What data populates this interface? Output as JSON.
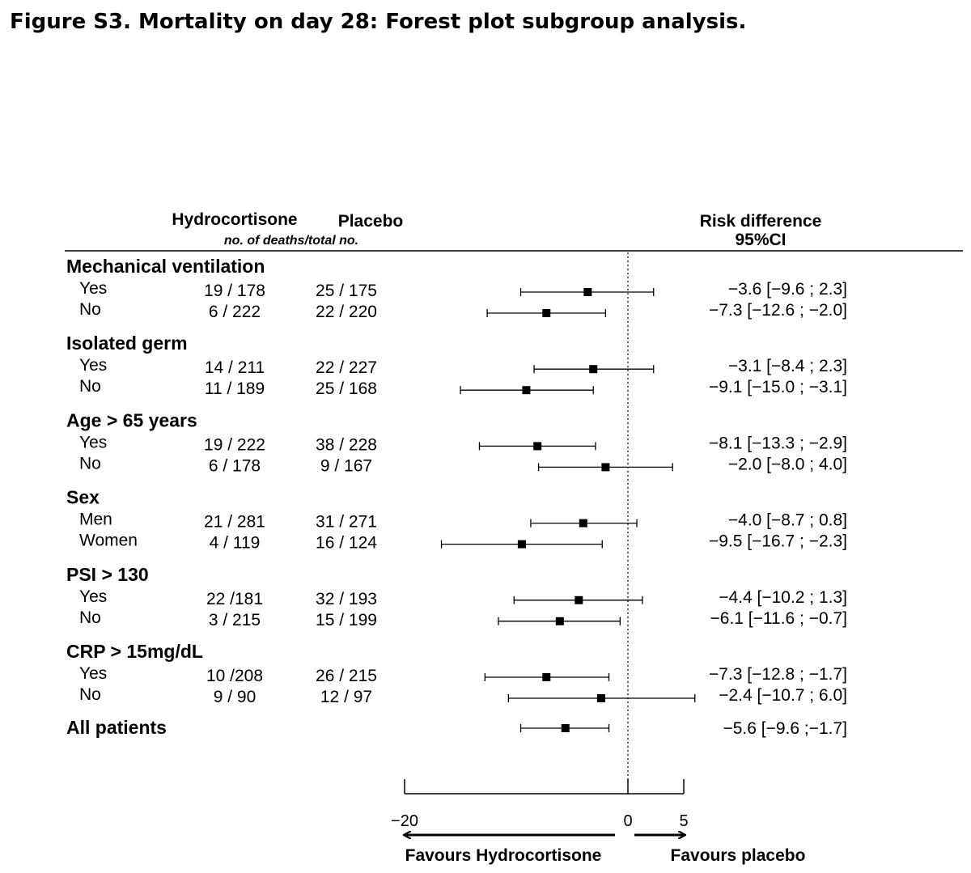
{
  "figure_title": "Figure S3. Mortality on day 28: Forest plot subgroup analysis.",
  "chart_data": {
    "type": "forest",
    "columns": {
      "hydrocortisone": "Hydrocortisone",
      "placebo": "Placebo",
      "subheader": "no. of deaths/total no.",
      "risk_difference": "Risk difference",
      "ci": "95%CI"
    },
    "groups": [
      {
        "name": "Mechanical ventilation",
        "rows": [
          {
            "label": "Yes",
            "hydrocortisone": "19 / 178",
            "placebo": "25 / 175",
            "estimate": -3.6,
            "lower": -9.6,
            "upper": 2.3,
            "text": "−3.6 [−9.6 ; 2.3]"
          },
          {
            "label": "No",
            "hydrocortisone": "6 / 222",
            "placebo": "22 / 220",
            "estimate": -7.3,
            "lower": -12.6,
            "upper": -2.0,
            "text": "−7.3 [−12.6 ; −2.0]"
          }
        ]
      },
      {
        "name": "Isolated germ",
        "rows": [
          {
            "label": "Yes",
            "hydrocortisone": "14 / 211",
            "placebo": "22 / 227",
            "estimate": -3.1,
            "lower": -8.4,
            "upper": 2.3,
            "text": "−3.1 [−8.4 ; 2.3]"
          },
          {
            "label": "No",
            "hydrocortisone": "11 / 189",
            "placebo": "25 / 168",
            "estimate": -9.1,
            "lower": -15.0,
            "upper": -3.1,
            "text": "−9.1 [−15.0 ; −3.1]"
          }
        ]
      },
      {
        "name": "Age > 65 years",
        "rows": [
          {
            "label": "Yes",
            "hydrocortisone": "19 / 222",
            "placebo": "38 / 228",
            "estimate": -8.1,
            "lower": -13.3,
            "upper": -2.9,
            "text": "−8.1 [−13.3 ; −2.9]"
          },
          {
            "label": "No",
            "hydrocortisone": "6 / 178",
            "placebo": "9 / 167",
            "estimate": -2.0,
            "lower": -8.0,
            "upper": 4.0,
            "text": "−2.0 [−8.0 ; 4.0]"
          }
        ]
      },
      {
        "name": "Sex",
        "rows": [
          {
            "label": "Men",
            "hydrocortisone": "21 / 281",
            "placebo": "31 / 271",
            "estimate": -4.0,
            "lower": -8.7,
            "upper": 0.8,
            "text": "−4.0 [−8.7 ; 0.8]"
          },
          {
            "label": "Women",
            "hydrocortisone": "4 / 119",
            "placebo": "16 / 124",
            "estimate": -9.5,
            "lower": -16.7,
            "upper": -2.3,
            "text": "−9.5 [−16.7 ; −2.3]"
          }
        ]
      },
      {
        "name": "PSI > 130",
        "rows": [
          {
            "label": "Yes",
            "hydrocortisone": "22 /181",
            "placebo": "32 / 193",
            "estimate": -4.4,
            "lower": -10.2,
            "upper": 1.3,
            "text": "−4.4 [−10.2 ; 1.3]"
          },
          {
            "label": "No",
            "hydrocortisone": "3 / 215",
            "placebo": "15 / 199",
            "estimate": -6.1,
            "lower": -11.6,
            "upper": -0.7,
            "text": "−6.1 [−11.6 ; −0.7]"
          }
        ]
      },
      {
        "name": "CRP > 15mg/dL",
        "rows": [
          {
            "label": "Yes",
            "hydrocortisone": "10 /208",
            "placebo": "26 / 215",
            "estimate": -7.3,
            "lower": -12.8,
            "upper": -1.7,
            "text": "−7.3 [−12.8 ; −1.7]"
          },
          {
            "label": "No",
            "hydrocortisone": "9 / 90",
            "placebo": "12 / 97",
            "estimate": -2.4,
            "lower": -10.7,
            "upper": 6.0,
            "text": "−2.4 [−10.7 ; 6.0]"
          }
        ]
      }
    ],
    "overall": {
      "label": "All patients",
      "estimate": -5.6,
      "lower": -9.6,
      "upper": -1.7,
      "text": "−5.6 [−9.6 ;−1.7]"
    },
    "x_axis": {
      "range": [
        -20,
        5
      ],
      "ticks": [
        -20,
        0,
        5
      ],
      "tick_labels": [
        "−20",
        "0",
        "5"
      ],
      "reference_line": 0,
      "left_arrow_label": "Favours Hydrocortisone",
      "right_arrow_label": "Favours placebo"
    }
  }
}
